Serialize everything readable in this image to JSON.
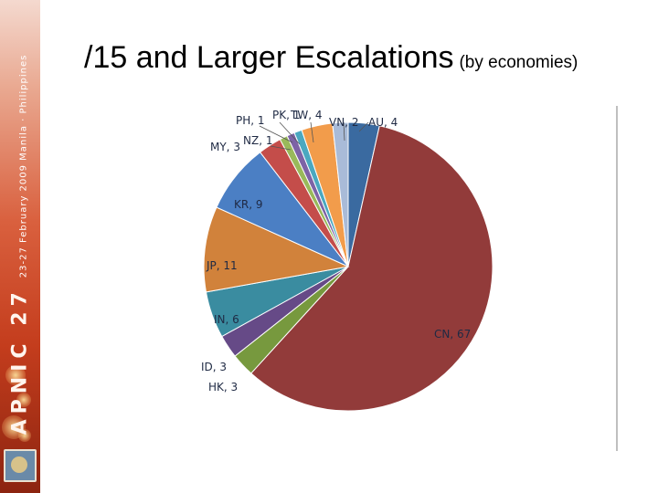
{
  "sidebar": {
    "brand": "APNIC 27",
    "subtitle": "23-27 February 2009 Manila · Philippines"
  },
  "slide": {
    "title": "/15 and Larger Escalations",
    "title_suffix": "(by economies)"
  },
  "chart_data": {
    "type": "pie",
    "title": "",
    "start": "12 o'clock, clockwise",
    "slices": [
      {
        "label": "AU, 4",
        "name": "AU",
        "value": 4,
        "color": "#3a6aa0"
      },
      {
        "label": "CN, 67",
        "name": "CN",
        "value": 67,
        "color": "#923b3a"
      },
      {
        "label": "HK, 3",
        "name": "HK",
        "value": 3,
        "color": "#77993e"
      },
      {
        "label": "ID, 3",
        "name": "ID",
        "value": 3,
        "color": "#664a87"
      },
      {
        "label": "IN, 6",
        "name": "IN",
        "value": 6,
        "color": "#3a8ca0"
      },
      {
        "label": "JP, 11",
        "name": "JP",
        "value": 11,
        "color": "#d1823b"
      },
      {
        "label": "KR, 9",
        "name": "KR",
        "value": 9,
        "color": "#4b7fc4"
      },
      {
        "label": "MY, 3",
        "name": "MY",
        "value": 3,
        "color": "#c44d4a"
      },
      {
        "label": "NZ, 1",
        "name": "NZ",
        "value": 1,
        "color": "#99b95a"
      },
      {
        "label": "PH, 1",
        "name": "PH",
        "value": 1,
        "color": "#7d63a6"
      },
      {
        "label": "PK, 1",
        "name": "PK",
        "value": 1,
        "color": "#4aa8c0"
      },
      {
        "label": "TW, 4",
        "name": "TW",
        "value": 4,
        "color": "#f29c4b"
      },
      {
        "label": "VN, 2",
        "name": "VN",
        "value": 2,
        "color": "#a9bbd8"
      }
    ]
  }
}
